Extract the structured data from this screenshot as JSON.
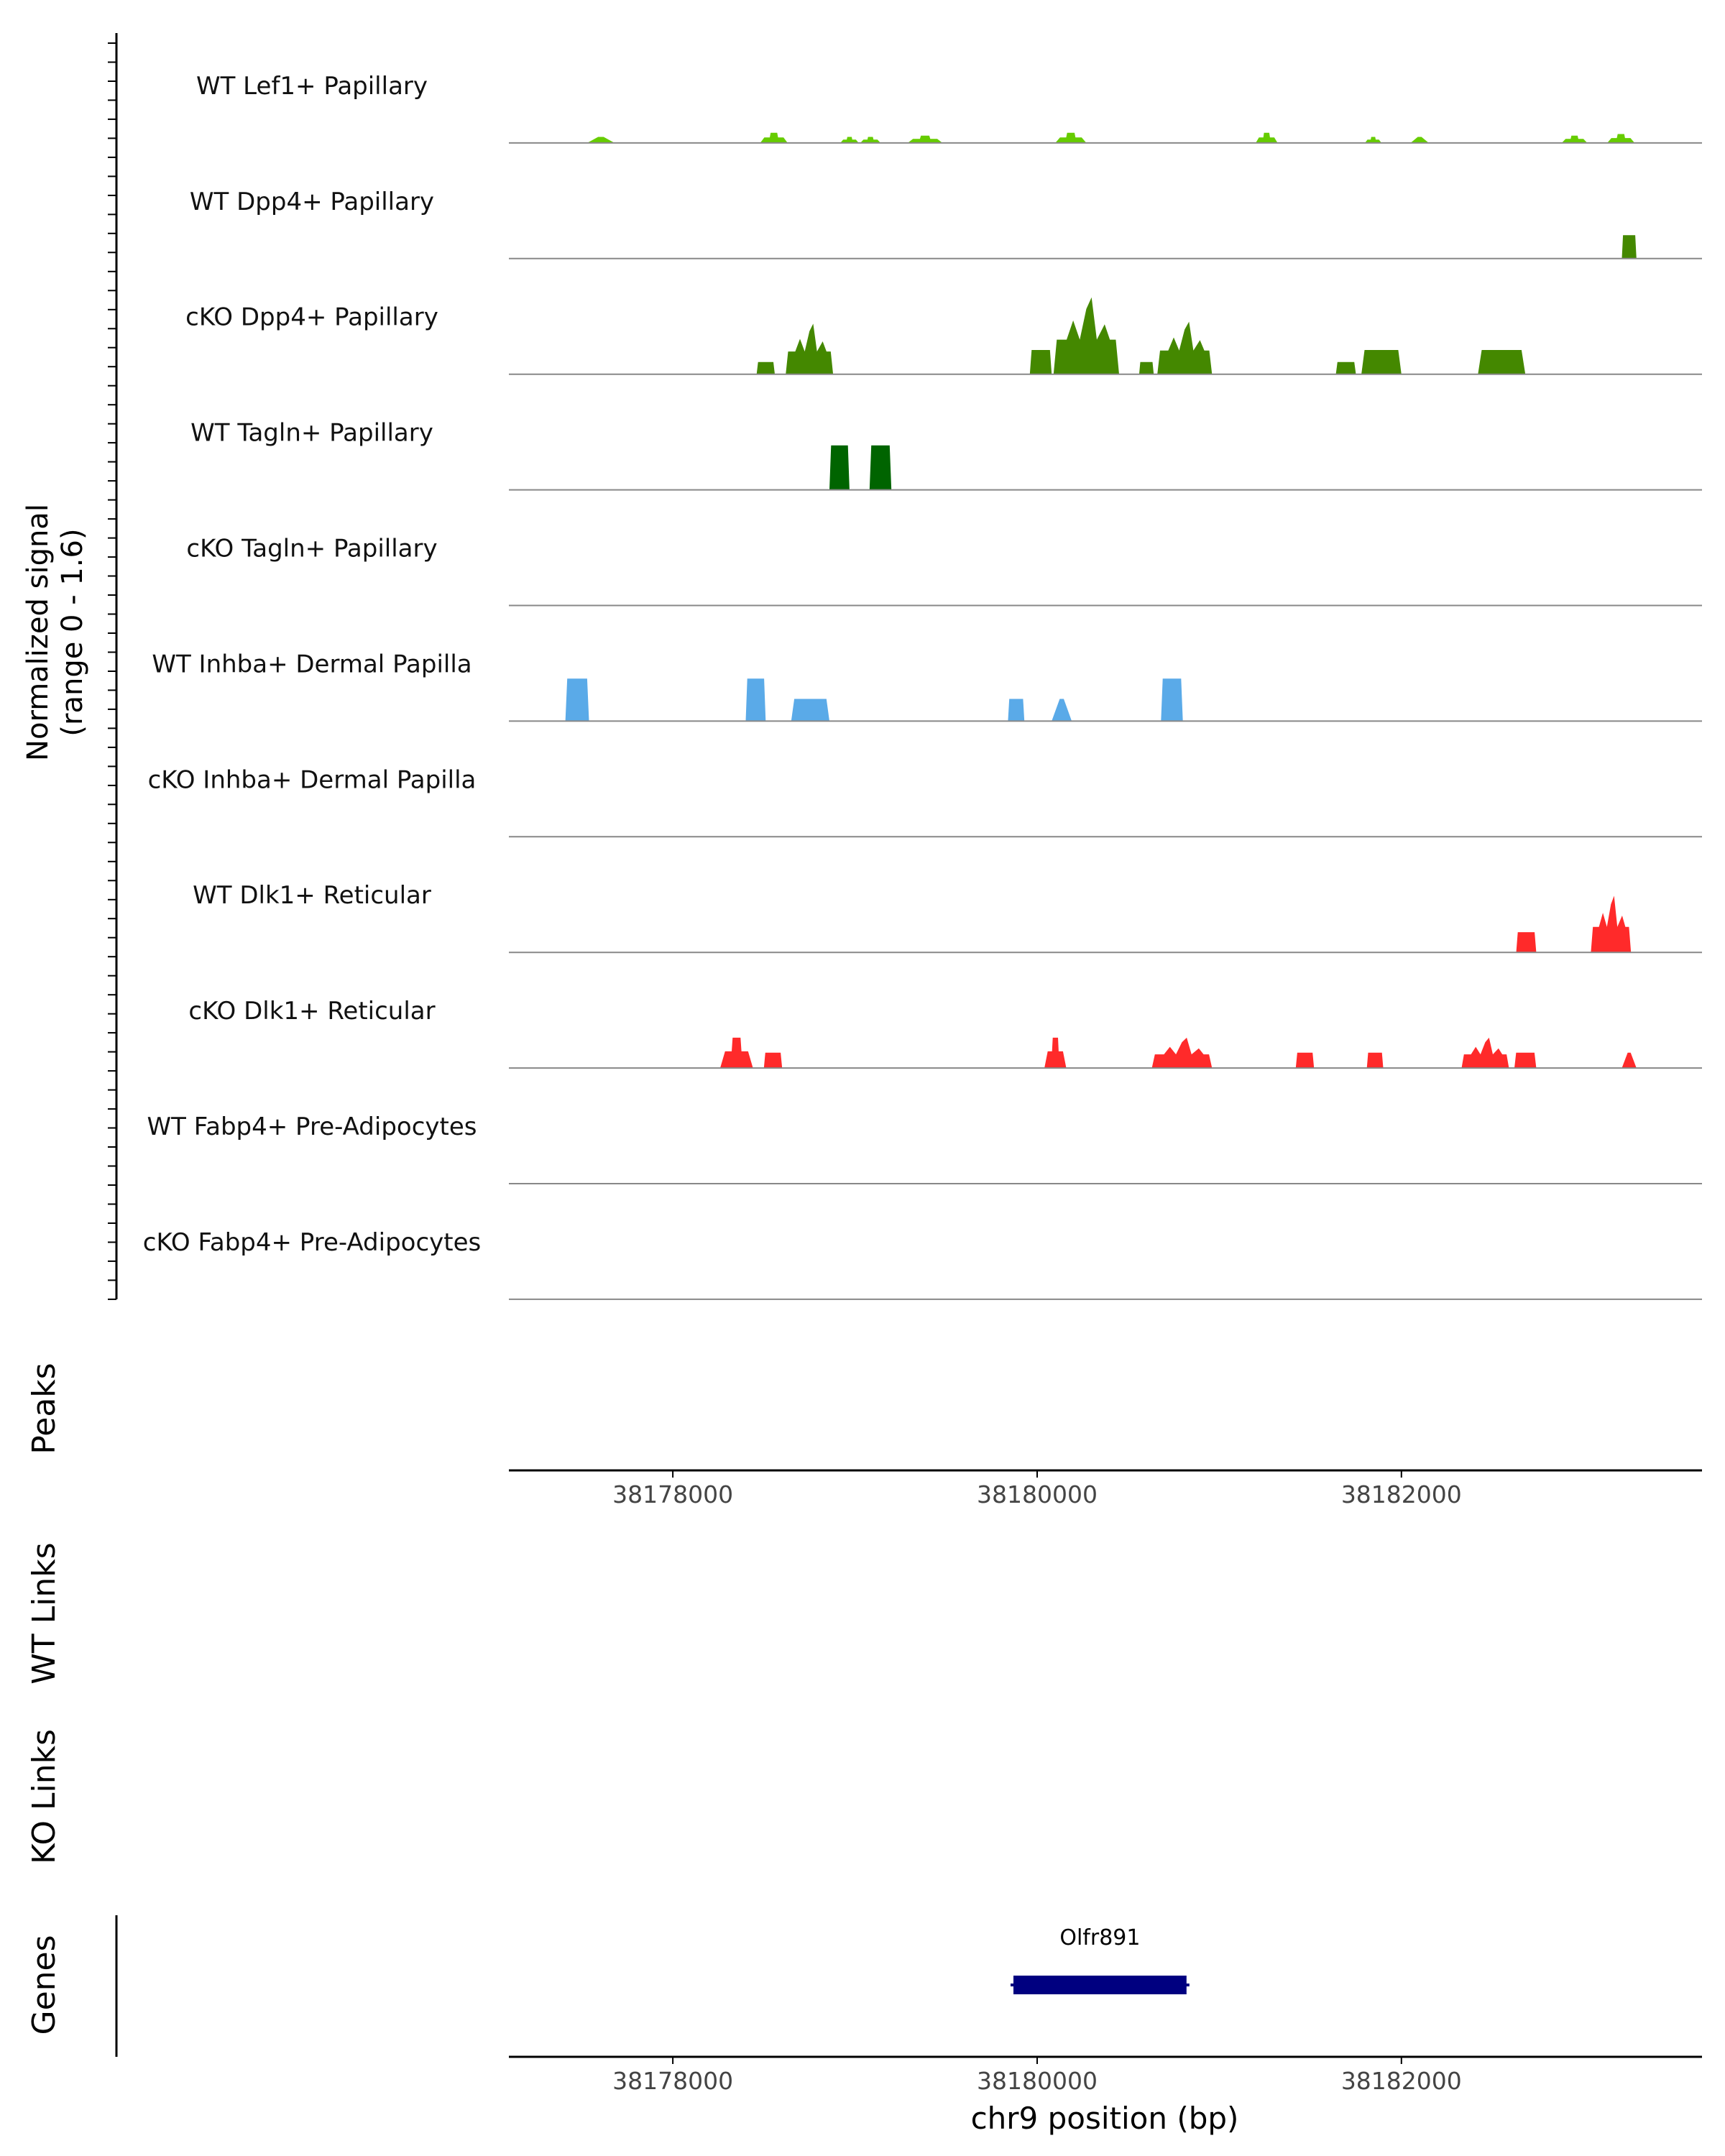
{
  "chart_data": {
    "type": "area",
    "title": "",
    "region": "chr9",
    "xlabel": "chr9 position (bp)",
    "xlim": [
      38177100,
      38183650
    ],
    "x_ticks": [
      38178000,
      38180000,
      38182000
    ],
    "x_tick_labels": [
      "38178000",
      "38180000",
      "38182000"
    ],
    "ylabel_line1": "Normalized signal",
    "ylabel_line2": "(range 0 - 1.6)",
    "ylim": [
      0,
      1.6
    ],
    "panel_labels": {
      "peaks": "Peaks",
      "wt_links": "WT Links",
      "ko_links": "KO Links",
      "genes": "Genes"
    },
    "colors": {
      "lef1": "#66cc00",
      "dpp4": "#448800",
      "tagln": "#006400",
      "inhba": "#5aaae8",
      "dlk1": "#ff2a2a",
      "gene": "#000080",
      "baseline": "#888888",
      "axis": "#000000"
    },
    "series": [
      {
        "name": "WT Lef1+ Papillary",
        "color_key": "lef1",
        "peaks": [
          [
            38177530,
            38177680,
            0.15,
            "tri"
          ],
          [
            38178480,
            38178630,
            0.25,
            "plat"
          ],
          [
            38178920,
            38179020,
            0.15,
            "plat"
          ],
          [
            38179030,
            38179140,
            0.15,
            "plat"
          ],
          [
            38179290,
            38179480,
            0.18,
            "plat"
          ],
          [
            38180100,
            38180270,
            0.25,
            "plat"
          ],
          [
            38181200,
            38181320,
            0.25,
            "plat"
          ],
          [
            38181800,
            38181890,
            0.15,
            "plat"
          ],
          [
            38182050,
            38182150,
            0.15,
            "tri"
          ],
          [
            38182880,
            38183020,
            0.18,
            "plat"
          ],
          [
            38183130,
            38183280,
            0.22,
            "plat"
          ]
        ]
      },
      {
        "name": "WT Dpp4+ Papillary",
        "color_key": "dpp4",
        "peaks": [
          [
            38183210,
            38183290,
            0.58,
            "block"
          ]
        ]
      },
      {
        "name": "cKO Dpp4+ Papillary",
        "color_key": "dpp4",
        "peaks": [
          [
            38178460,
            38178560,
            0.3,
            "block"
          ],
          [
            38178620,
            38178880,
            1.25,
            "spike"
          ],
          [
            38179960,
            38180080,
            0.6,
            "block"
          ],
          [
            38180090,
            38180450,
            1.9,
            "spike"
          ],
          [
            38180560,
            38180640,
            0.3,
            "block"
          ],
          [
            38180660,
            38180960,
            1.3,
            "spike"
          ],
          [
            38181640,
            38181750,
            0.3,
            "block"
          ],
          [
            38181780,
            38182000,
            0.6,
            "block"
          ],
          [
            38182420,
            38182680,
            0.6,
            "block"
          ]
        ]
      },
      {
        "name": "WT Tagln+ Papillary",
        "color_key": "tagln",
        "peaks": [
          [
            38178860,
            38178970,
            1.1,
            "block"
          ],
          [
            38179080,
            38179200,
            1.1,
            "block"
          ]
        ]
      },
      {
        "name": "cKO Tagln+ Papillary",
        "color_key": "tagln",
        "peaks": []
      },
      {
        "name": "WT Inhba+ Dermal Papilla",
        "color_key": "inhba",
        "peaks": [
          [
            38177410,
            38177540,
            1.05,
            "block"
          ],
          [
            38178400,
            38178510,
            1.05,
            "block"
          ],
          [
            38178650,
            38178860,
            0.55,
            "block"
          ],
          [
            38179840,
            38179930,
            0.55,
            "block"
          ],
          [
            38180080,
            38180190,
            0.55,
            "tri"
          ],
          [
            38180680,
            38180800,
            1.05,
            "block"
          ]
        ]
      },
      {
        "name": "cKO Inhba+ Dermal Papilla",
        "color_key": "inhba",
        "peaks": []
      },
      {
        "name": "WT Dlk1+ Reticular",
        "color_key": "dlk1",
        "peaks": [
          [
            38182630,
            38182740,
            0.5,
            "block"
          ],
          [
            38183040,
            38183260,
            1.4,
            "spike"
          ]
        ]
      },
      {
        "name": "cKO Dlk1+ Reticular",
        "color_key": "dlk1",
        "peaks": [
          [
            38178260,
            38178440,
            0.75,
            "plat"
          ],
          [
            38178500,
            38178600,
            0.38,
            "block"
          ],
          [
            38180040,
            38180160,
            0.75,
            "plat"
          ],
          [
            38180630,
            38180960,
            0.75,
            "spike"
          ],
          [
            38181420,
            38181520,
            0.38,
            "block"
          ],
          [
            38181810,
            38181900,
            0.38,
            "block"
          ],
          [
            38182330,
            38182590,
            0.75,
            "spike"
          ],
          [
            38182620,
            38182740,
            0.38,
            "block"
          ],
          [
            38183210,
            38183290,
            0.38,
            "tri"
          ]
        ]
      },
      {
        "name": "WT Fabp4+ Pre-Adipocytes",
        "color_key": "lef1",
        "peaks": []
      },
      {
        "name": "cKO Fabp4+ Pre-Adipocytes",
        "color_key": "lef1",
        "peaks": []
      }
    ],
    "genes": [
      {
        "name": "Olfr891",
        "start": 38179870,
        "end": 38180820
      }
    ]
  }
}
